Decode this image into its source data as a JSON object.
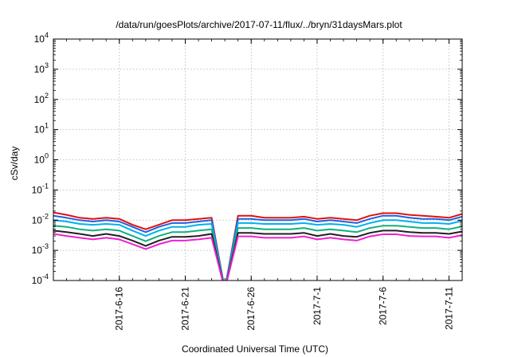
{
  "chart_data": {
    "type": "line",
    "title": "/data/run/goesPlots/archive/2017-07-11/flux/../bryn/31daysMars.plot",
    "xlabel": "Coordinated Universal Time (UTC)",
    "ylabel": "cSv/day",
    "yscale": "log",
    "ylim": [
      0.0001,
      10000
    ],
    "xlim": [
      "2017-06-11",
      "2017-07-12"
    ],
    "grid": true,
    "x_ticks": [
      "2017-6-16",
      "2017-6-21",
      "2017-6-26",
      "2017-7-1",
      "2017-7-6",
      "2017-7-11"
    ],
    "y_ticks": [
      {
        "base": "10",
        "exp": "-4"
      },
      {
        "base": "10",
        "exp": "-3"
      },
      {
        "base": "10",
        "exp": "-2"
      },
      {
        "base": "10",
        "exp": "-1"
      },
      {
        "base": "10",
        "exp": "0"
      },
      {
        "base": "10",
        "exp": "1"
      },
      {
        "base": "10",
        "exp": "2"
      },
      {
        "base": "10",
        "exp": "3"
      },
      {
        "base": "10",
        "exp": "4"
      }
    ],
    "x": [
      "2017-06-11",
      "2017-06-12",
      "2017-06-13",
      "2017-06-14",
      "2017-06-15",
      "2017-06-16",
      "2017-06-17",
      "2017-06-18",
      "2017-06-19",
      "2017-06-20",
      "2017-06-21",
      "2017-06-22",
      "2017-06-23",
      "2017-06-24",
      "2017-06-25",
      "2017-06-26",
      "2017-06-27",
      "2017-06-28",
      "2017-06-29",
      "2017-06-30",
      "2017-07-01",
      "2017-07-02",
      "2017-07-03",
      "2017-07-04",
      "2017-07-05",
      "2017-07-06",
      "2017-07-07",
      "2017-07-08",
      "2017-07-09",
      "2017-07-10",
      "2017-07-11",
      "2017-07-12"
    ],
    "series": [
      {
        "color": "#e01010",
        "values": [
          0.018,
          0.015,
          0.012,
          0.011,
          0.012,
          0.011,
          0.007,
          0.005,
          0.007,
          0.01,
          0.01,
          0.011,
          0.012,
          5e-05,
          0.014,
          0.014,
          0.012,
          0.012,
          0.012,
          0.013,
          0.011,
          0.012,
          0.011,
          0.01,
          0.014,
          0.017,
          0.017,
          0.015,
          0.014,
          0.013,
          0.012,
          0.016
        ]
      },
      {
        "color": "#2060e0",
        "values": [
          0.014,
          0.012,
          0.01,
          0.009,
          0.01,
          0.009,
          0.006,
          0.004,
          0.006,
          0.008,
          0.008,
          0.009,
          0.01,
          5e-05,
          0.011,
          0.011,
          0.01,
          0.01,
          0.01,
          0.011,
          0.009,
          0.01,
          0.009,
          0.008,
          0.011,
          0.014,
          0.014,
          0.012,
          0.011,
          0.011,
          0.01,
          0.013
        ]
      },
      {
        "color": "#00b0f0",
        "values": [
          0.01,
          0.009,
          0.0075,
          0.007,
          0.0075,
          0.007,
          0.0045,
          0.003,
          0.0045,
          0.006,
          0.006,
          0.007,
          0.0075,
          5e-05,
          0.008,
          0.008,
          0.0075,
          0.0075,
          0.0075,
          0.008,
          0.007,
          0.0075,
          0.007,
          0.006,
          0.008,
          0.01,
          0.01,
          0.009,
          0.008,
          0.008,
          0.0075,
          0.0095
        ]
      },
      {
        "color": "#10b080",
        "values": [
          0.0065,
          0.006,
          0.005,
          0.0045,
          0.005,
          0.0045,
          0.003,
          0.002,
          0.003,
          0.004,
          0.004,
          0.0045,
          0.005,
          5e-05,
          0.0055,
          0.0055,
          0.005,
          0.005,
          0.005,
          0.0055,
          0.0045,
          0.005,
          0.0045,
          0.004,
          0.0055,
          0.0065,
          0.0065,
          0.006,
          0.0055,
          0.0055,
          0.005,
          0.0062
        ]
      },
      {
        "color": "#202020",
        "values": [
          0.0045,
          0.004,
          0.0035,
          0.003,
          0.0035,
          0.003,
          0.0021,
          0.0014,
          0.0021,
          0.0028,
          0.0028,
          0.003,
          0.0035,
          5e-05,
          0.0038,
          0.0038,
          0.0035,
          0.0035,
          0.0035,
          0.0038,
          0.003,
          0.0035,
          0.003,
          0.0028,
          0.0038,
          0.0045,
          0.0045,
          0.004,
          0.0038,
          0.0038,
          0.0035,
          0.0042
        ]
      },
      {
        "color": "#f020d0",
        "values": [
          0.0035,
          0.003,
          0.0026,
          0.0023,
          0.0026,
          0.0023,
          0.0016,
          0.0011,
          0.0016,
          0.0021,
          0.0021,
          0.0023,
          0.0026,
          5e-05,
          0.0029,
          0.0029,
          0.0026,
          0.0026,
          0.0026,
          0.0029,
          0.0023,
          0.0026,
          0.0023,
          0.0021,
          0.0029,
          0.0034,
          0.0034,
          0.003,
          0.0029,
          0.0029,
          0.0026,
          0.0032
        ]
      }
    ]
  }
}
